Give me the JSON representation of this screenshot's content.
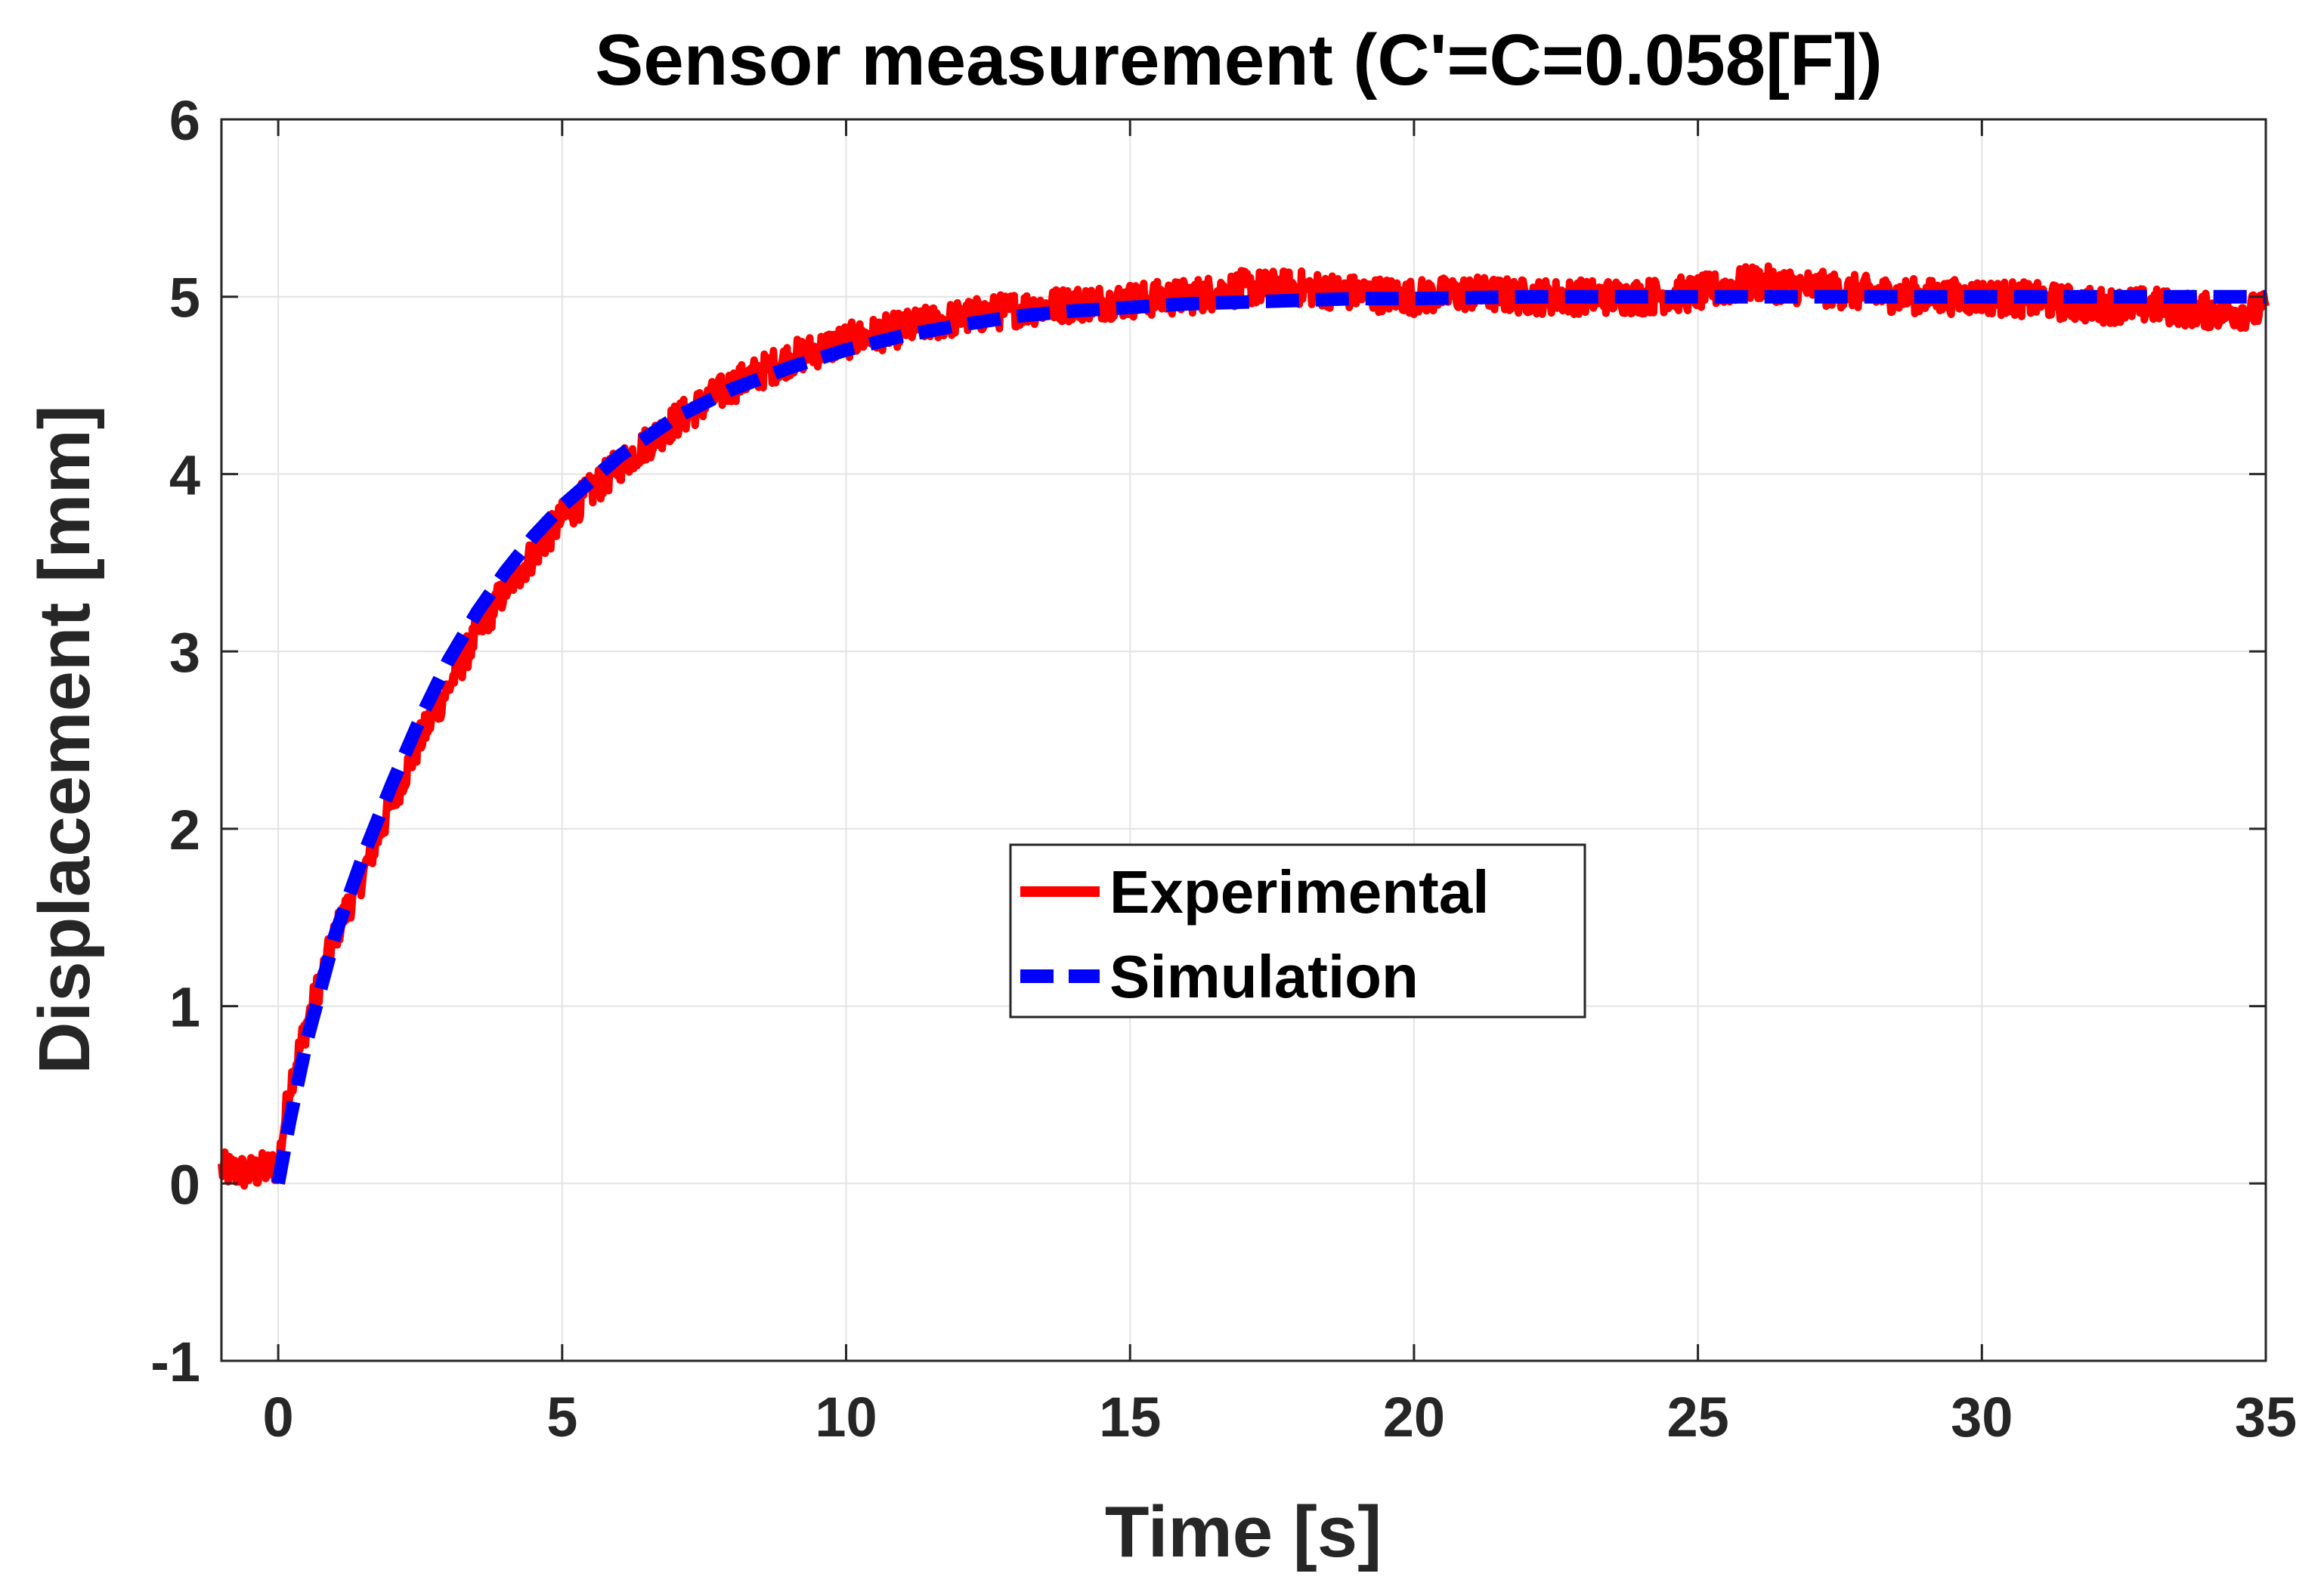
{
  "chart_data": {
    "type": "line",
    "title": "Sensor measurement (C'=C=0.058[F])",
    "xlabel": "Time [s]",
    "ylabel": "Displacement [mm]",
    "xlim": [
      -1,
      35
    ],
    "ylim": [
      -1,
      6
    ],
    "xticks": [
      0,
      5,
      10,
      15,
      20,
      25,
      30,
      35
    ],
    "yticks": [
      -1,
      0,
      1,
      2,
      3,
      4,
      5,
      6
    ],
    "xtick_labels": [
      "0",
      "5",
      "10",
      "15",
      "20",
      "25",
      "30",
      "35"
    ],
    "ytick_labels": [
      "-1",
      "0",
      "1",
      "2",
      "3",
      "4",
      "5",
      "6"
    ],
    "grid": true,
    "legend_position": "center-right",
    "series": [
      {
        "name": "Experimental",
        "color": "#ff0000",
        "style": "solid",
        "x": [
          -1,
          -0.5,
          0,
          0.2,
          0.5,
          1,
          1.5,
          2,
          2.5,
          3,
          3.5,
          4,
          4.5,
          5,
          6,
          7,
          8,
          9,
          10,
          11,
          12,
          13,
          14,
          15,
          16,
          17,
          18,
          19,
          20,
          21,
          22,
          23,
          24,
          25,
          26,
          27,
          28,
          29,
          30,
          31,
          32,
          33,
          34,
          35
        ],
        "y": [
          0.08,
          0.06,
          0.1,
          0.55,
          0.9,
          1.4,
          1.75,
          2.15,
          2.5,
          2.8,
          3.1,
          3.35,
          3.55,
          3.75,
          4.05,
          4.3,
          4.5,
          4.65,
          4.75,
          4.82,
          4.88,
          4.93,
          4.96,
          4.98,
          5.0,
          5.05,
          5.05,
          5.02,
          5.0,
          5.02,
          5.0,
          5.0,
          5.0,
          5.02,
          5.08,
          5.05,
          5.02,
          5.0,
          5.0,
          4.98,
          4.95,
          4.95,
          4.92,
          4.92
        ],
        "noise_amplitude": 0.1
      },
      {
        "name": "Simulation",
        "color": "#0000ff",
        "style": "dashed",
        "x": [
          0,
          0.2,
          0.5,
          1,
          1.5,
          2,
          2.5,
          3,
          3.5,
          4,
          4.5,
          5,
          6,
          7,
          8,
          9,
          10,
          11,
          12,
          13,
          14,
          15,
          16,
          17,
          18,
          19,
          20,
          22,
          24,
          26,
          28,
          30,
          32,
          34,
          35
        ],
        "y": [
          0.0,
          0.35,
          0.8,
          1.4,
          1.85,
          2.25,
          2.62,
          2.95,
          3.22,
          3.45,
          3.65,
          3.82,
          4.1,
          4.32,
          4.48,
          4.6,
          4.7,
          4.78,
          4.84,
          4.89,
          4.92,
          4.94,
          4.96,
          4.97,
          4.98,
          4.99,
          4.99,
          5.0,
          5.0,
          5.0,
          5.0,
          5.0,
          5.0,
          5.0,
          5.0
        ]
      }
    ]
  }
}
